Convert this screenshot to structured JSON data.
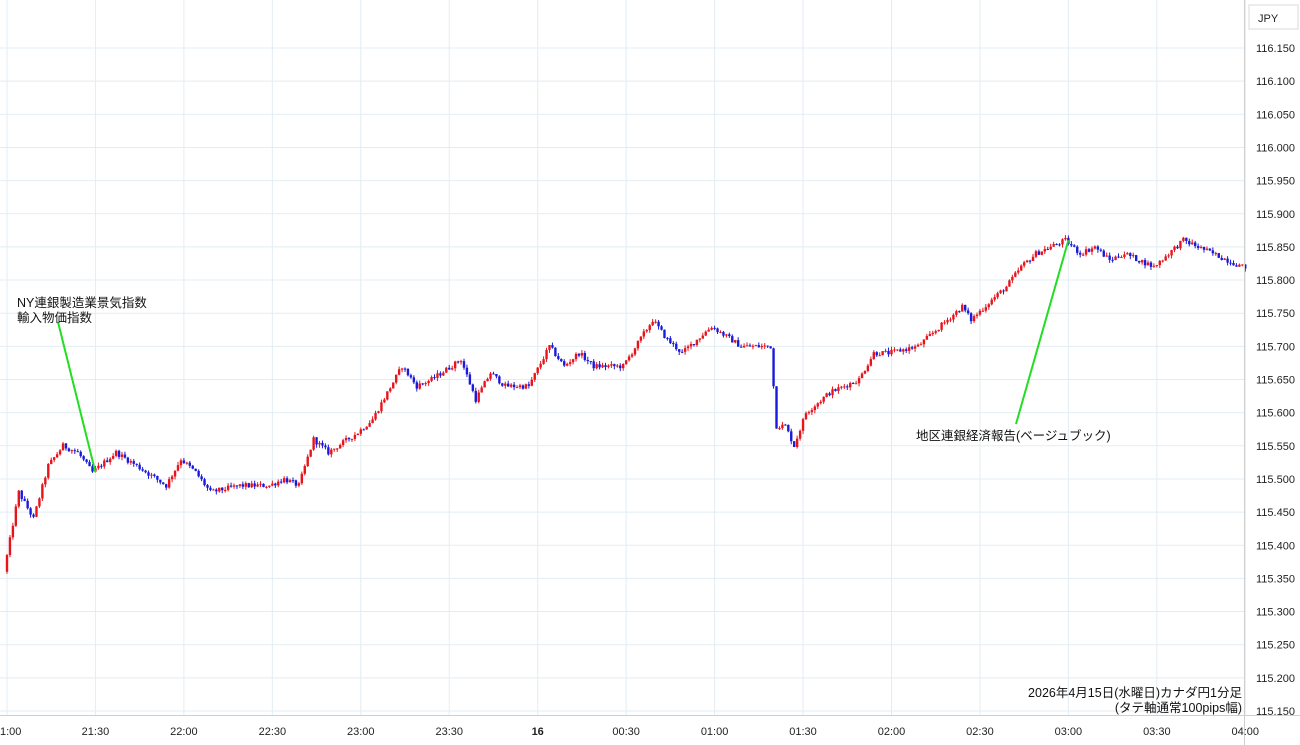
{
  "chart_data": {
    "type": "candlestick",
    "currency": "JPY",
    "ylim": [
      115.14,
      116.17
    ],
    "y_ticks": [
      "116.150",
      "116.100",
      "116.050",
      "116.000",
      "115.950",
      "115.900",
      "115.850",
      "115.800",
      "115.750",
      "115.700",
      "115.650",
      "115.600",
      "115.550",
      "115.500",
      "115.450",
      "115.400",
      "115.350",
      "115.300",
      "115.250",
      "115.200",
      "115.150"
    ],
    "x_ticks": [
      "1:00",
      "21:30",
      "22:00",
      "22:30",
      "23:00",
      "23:30",
      "16",
      "00:30",
      "01:00",
      "01:30",
      "02:00",
      "02:30",
      "03:00",
      "03:30",
      "04:00"
    ],
    "grid": true,
    "colors": {
      "up": "#e8141c",
      "down": "#1a1adc",
      "annotation_line": "#22dd22"
    },
    "price_path": [
      {
        "time": "21:00",
        "price": 115.36
      },
      {
        "time": "21:05",
        "price": 115.48
      },
      {
        "time": "21:10",
        "price": 115.44
      },
      {
        "time": "21:15",
        "price": 115.52
      },
      {
        "time": "21:20",
        "price": 115.55
      },
      {
        "time": "21:25",
        "price": 115.54
      },
      {
        "time": "21:30",
        "price": 115.51
      },
      {
        "time": "21:38",
        "price": 115.54
      },
      {
        "time": "21:45",
        "price": 115.52
      },
      {
        "time": "21:55",
        "price": 115.49
      },
      {
        "time": "22:00",
        "price": 115.53
      },
      {
        "time": "22:05",
        "price": 115.51
      },
      {
        "time": "22:10",
        "price": 115.48
      },
      {
        "time": "22:20",
        "price": 115.49
      },
      {
        "time": "22:30",
        "price": 115.49
      },
      {
        "time": "22:35",
        "price": 115.5
      },
      {
        "time": "22:40",
        "price": 115.49
      },
      {
        "time": "22:45",
        "price": 115.56
      },
      {
        "time": "22:50",
        "price": 115.54
      },
      {
        "time": "23:00",
        "price": 115.57
      },
      {
        "time": "23:05",
        "price": 115.59
      },
      {
        "time": "23:10",
        "price": 115.63
      },
      {
        "time": "23:15",
        "price": 115.67
      },
      {
        "time": "23:20",
        "price": 115.64
      },
      {
        "time": "23:25",
        "price": 115.65
      },
      {
        "time": "23:35",
        "price": 115.68
      },
      {
        "time": "23:40",
        "price": 115.62
      },
      {
        "time": "23:45",
        "price": 115.66
      },
      {
        "time": "23:50",
        "price": 115.64
      },
      {
        "time": "23:58",
        "price": 115.64
      },
      {
        "time": "00:05",
        "price": 115.7
      },
      {
        "time": "00:10",
        "price": 115.67
      },
      {
        "time": "00:15",
        "price": 115.69
      },
      {
        "time": "00:20",
        "price": 115.67
      },
      {
        "time": "00:30",
        "price": 115.67
      },
      {
        "time": "00:40",
        "price": 115.74
      },
      {
        "time": "00:45",
        "price": 115.71
      },
      {
        "time": "00:50",
        "price": 115.69
      },
      {
        "time": "01:00",
        "price": 115.73
      },
      {
        "time": "01:10",
        "price": 115.7
      },
      {
        "time": "01:20",
        "price": 115.7
      },
      {
        "time": "01:22",
        "price": 115.58
      },
      {
        "time": "01:25",
        "price": 115.58
      },
      {
        "time": "01:28",
        "price": 115.55
      },
      {
        "time": "01:32",
        "price": 115.6
      },
      {
        "time": "01:40",
        "price": 115.63
      },
      {
        "time": "01:50",
        "price": 115.65
      },
      {
        "time": "01:55",
        "price": 115.69
      },
      {
        "time": "02:00",
        "price": 115.69
      },
      {
        "time": "02:10",
        "price": 115.7
      },
      {
        "time": "02:15",
        "price": 115.72
      },
      {
        "time": "02:20",
        "price": 115.74
      },
      {
        "time": "02:25",
        "price": 115.76
      },
      {
        "time": "02:28",
        "price": 115.74
      },
      {
        "time": "02:35",
        "price": 115.77
      },
      {
        "time": "02:40",
        "price": 115.79
      },
      {
        "time": "02:45",
        "price": 115.82
      },
      {
        "time": "02:50",
        "price": 115.84
      },
      {
        "time": "02:55",
        "price": 115.85
      },
      {
        "time": "03:00",
        "price": 115.86
      },
      {
        "time": "03:05",
        "price": 115.84
      },
      {
        "time": "03:10",
        "price": 115.85
      },
      {
        "time": "03:15",
        "price": 115.83
      },
      {
        "time": "03:20",
        "price": 115.84
      },
      {
        "time": "03:30",
        "price": 115.82
      },
      {
        "time": "03:40",
        "price": 115.86
      },
      {
        "time": "03:45",
        "price": 115.85
      },
      {
        "time": "03:50",
        "price": 115.84
      },
      {
        "time": "03:55",
        "price": 115.83
      },
      {
        "time": "04:00",
        "price": 115.82
      }
    ],
    "annotations": [
      {
        "line1": "NY連銀製造業景気指数",
        "line2": "輸入物価指数",
        "time": "21:30",
        "price": 115.51
      },
      {
        "line1": "地区連銀経済報告(ベージュブック)",
        "line2": "",
        "time": "03:00",
        "price": 115.86
      }
    ],
    "footer": {
      "line1": "2026年4月15日(水曜日)カナダ円1分足",
      "line2": "(タテ軸通常100pips幅)"
    }
  }
}
